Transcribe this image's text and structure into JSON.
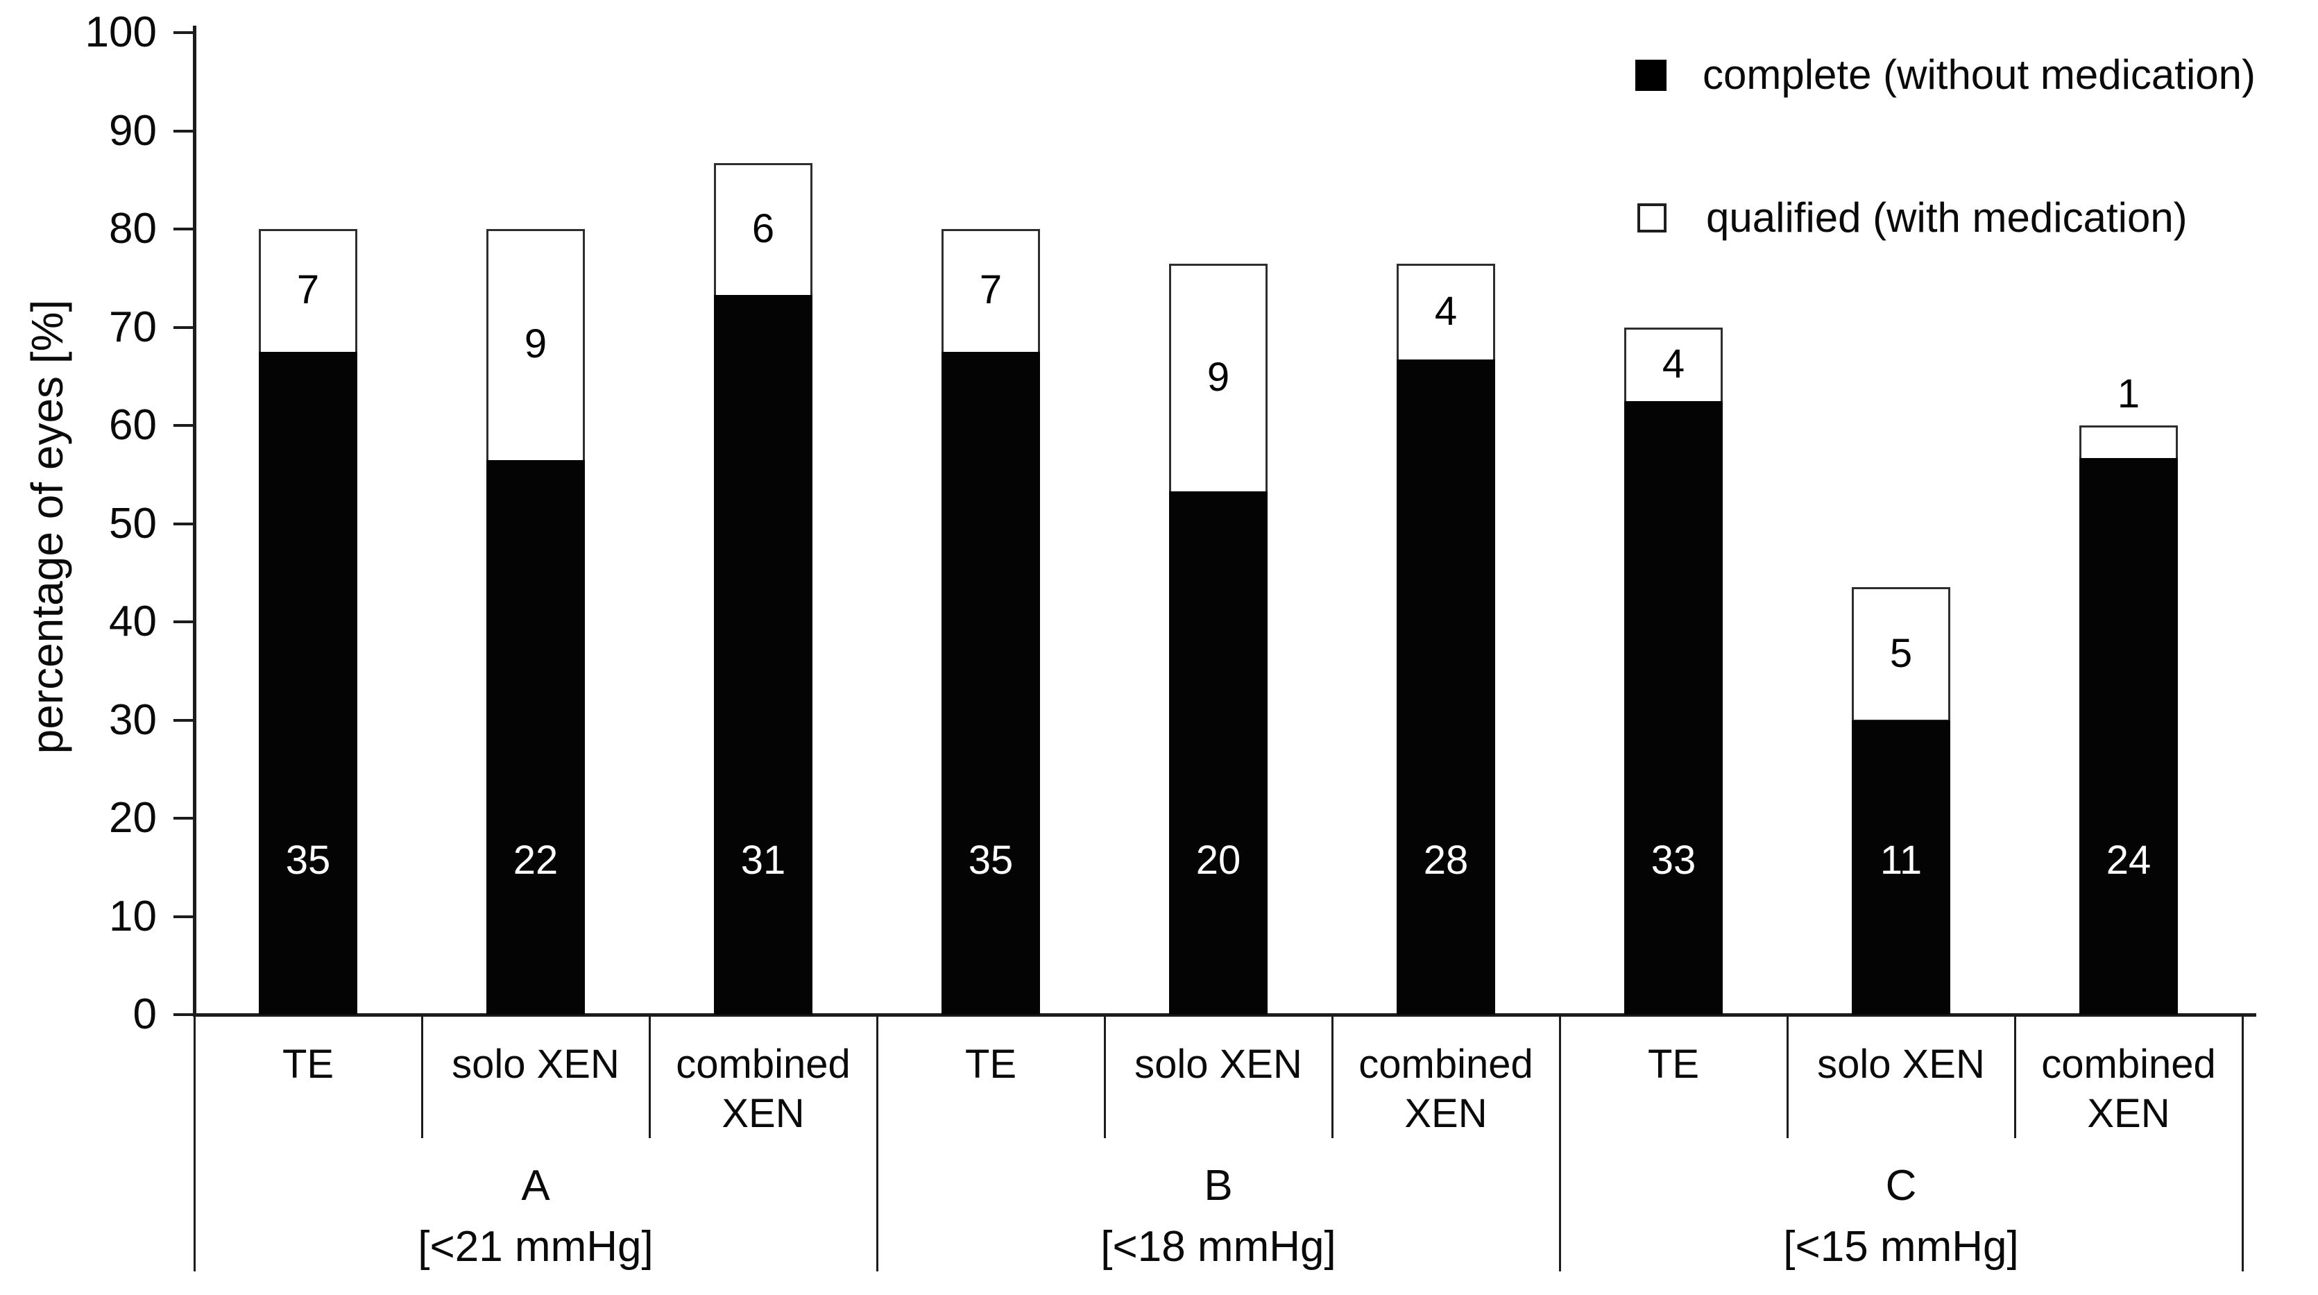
{
  "chart_data": {
    "type": "bar",
    "stacked": true,
    "title": "",
    "xlabel": "",
    "ylabel": "percentage of eyes [%]",
    "ylim": [
      0,
      100
    ],
    "ytick_step": 10,
    "grid": false,
    "legend_position": "top-right",
    "legend": [
      {
        "label": "complete (without medication)",
        "style": "filled-black-square"
      },
      {
        "label": "qualified (with medication)",
        "style": "outlined-white-square"
      }
    ],
    "series_colors": {
      "complete": "#000000",
      "qualified": "#ffffff"
    },
    "groups": [
      {
        "name": "A",
        "criterion": "[<21 mmHg]",
        "bars": [
          {
            "category": "TE",
            "complete_pct": 67.5,
            "total_pct": 80.0,
            "complete_count": 35,
            "qualified_count": 7
          },
          {
            "category": "solo XEN",
            "complete_pct": 56.5,
            "total_pct": 80.0,
            "complete_count": 22,
            "qualified_count": 9
          },
          {
            "category": "combined XEN",
            "complete_pct": 73.3,
            "total_pct": 86.7,
            "complete_count": 31,
            "qualified_count": 6
          }
        ]
      },
      {
        "name": "B",
        "criterion": "[<18 mmHg]",
        "bars": [
          {
            "category": "TE",
            "complete_pct": 67.5,
            "total_pct": 80.0,
            "complete_count": 35,
            "qualified_count": 7
          },
          {
            "category": "solo XEN",
            "complete_pct": 53.3,
            "total_pct": 76.5,
            "complete_count": 20,
            "qualified_count": 9
          },
          {
            "category": "combined XEN",
            "complete_pct": 66.7,
            "total_pct": 76.5,
            "complete_count": 28,
            "qualified_count": 4
          }
        ]
      },
      {
        "name": "C",
        "criterion": "[<15 mmHg]",
        "bars": [
          {
            "category": "TE",
            "complete_pct": 62.5,
            "total_pct": 70.0,
            "complete_count": 33,
            "qualified_count": 4
          },
          {
            "category": "solo XEN",
            "complete_pct": 30.0,
            "total_pct": 43.5,
            "complete_count": 11,
            "qualified_count": 5
          },
          {
            "category": "combined XEN",
            "complete_pct": 56.7,
            "total_pct": 60.0,
            "complete_count": 24,
            "qualified_count": 1
          }
        ]
      }
    ]
  }
}
